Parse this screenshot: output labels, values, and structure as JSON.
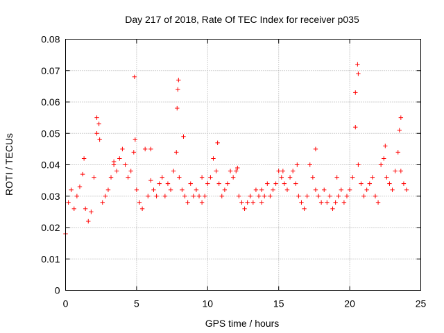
{
  "chart_data": {
    "type": "scatter",
    "title": "Day 217 of 2018, Rate Of TEC Index for receiver p035",
    "xlabel": "GPS time / hours",
    "ylabel": "ROTI / TECUs",
    "xlim": [
      0,
      25
    ],
    "ylim": [
      0,
      0.08
    ],
    "xticks": [
      0,
      5,
      10,
      15,
      20,
      25
    ],
    "xtick_labels": [
      "0",
      "5",
      "10",
      "15",
      "20",
      "25"
    ],
    "yticks": [
      0,
      0.01,
      0.02,
      0.03,
      0.04,
      0.05,
      0.06,
      0.07,
      0.08
    ],
    "ytick_labels": [
      "0",
      "0.01",
      "0.02",
      "0.03",
      "0.04",
      "0.05",
      "0.06",
      "0.07",
      "0.08"
    ],
    "grid": true,
    "marker": "+",
    "series": [
      {
        "name": "ROTI",
        "color": "#ff0000",
        "x": [
          0.0,
          0.2,
          0.4,
          0.6,
          0.8,
          1.0,
          1.2,
          1.4,
          1.6,
          1.8,
          2.0,
          2.2,
          2.4,
          2.6,
          2.8,
          3.0,
          3.2,
          3.4,
          3.6,
          3.8,
          4.0,
          4.2,
          4.4,
          4.6,
          4.8,
          5.0,
          5.2,
          5.4,
          5.6,
          5.8,
          6.0,
          6.2,
          6.4,
          6.6,
          6.8,
          7.0,
          7.2,
          7.4,
          7.6,
          7.8,
          8.0,
          8.2,
          8.4,
          8.6,
          8.8,
          9.0,
          9.2,
          9.4,
          9.6,
          9.8,
          10.0,
          10.2,
          10.4,
          10.6,
          10.8,
          11.0,
          11.2,
          11.4,
          11.6,
          11.8,
          12.0,
          12.2,
          12.4,
          12.6,
          12.8,
          13.0,
          13.2,
          13.4,
          13.6,
          13.8,
          14.0,
          14.2,
          14.4,
          14.6,
          14.8,
          15.0,
          15.2,
          15.4,
          15.6,
          15.8,
          16.0,
          16.2,
          16.4,
          16.6,
          16.8,
          17.0,
          17.2,
          17.4,
          17.6,
          17.8,
          18.0,
          18.2,
          18.4,
          18.6,
          18.8,
          19.0,
          19.2,
          19.4,
          19.6,
          19.8,
          20.0,
          20.2,
          20.4,
          20.6,
          20.8,
          21.0,
          21.2,
          21.4,
          21.6,
          21.8,
          22.0,
          22.2,
          22.4,
          22.6,
          22.8,
          23.0,
          23.2,
          23.4,
          23.6,
          23.8,
          24.0,
          2.2,
          2.35,
          4.85,
          4.9,
          7.85,
          7.9,
          7.95,
          8.3,
          10.7,
          12.1,
          15.3,
          16.3,
          17.6,
          20.4,
          20.55,
          20.6,
          22.5,
          23.5,
          23.6,
          1.3,
          3.4,
          6.0,
          9.6,
          13.8,
          19.1
        ],
        "y": [
          0.018,
          0.028,
          0.032,
          0.026,
          0.03,
          0.033,
          0.037,
          0.026,
          0.022,
          0.025,
          0.036,
          0.05,
          0.048,
          0.028,
          0.03,
          0.032,
          0.036,
          0.04,
          0.038,
          0.042,
          0.045,
          0.04,
          0.036,
          0.038,
          0.044,
          0.032,
          0.028,
          0.026,
          0.045,
          0.03,
          0.035,
          0.032,
          0.03,
          0.034,
          0.036,
          0.03,
          0.034,
          0.032,
          0.038,
          0.044,
          0.036,
          0.032,
          0.03,
          0.028,
          0.034,
          0.03,
          0.032,
          0.03,
          0.028,
          0.03,
          0.034,
          0.036,
          0.042,
          0.038,
          0.034,
          0.03,
          0.032,
          0.034,
          0.038,
          0.036,
          0.038,
          0.03,
          0.028,
          0.026,
          0.028,
          0.03,
          0.028,
          0.032,
          0.03,
          0.028,
          0.03,
          0.034,
          0.03,
          0.032,
          0.034,
          0.038,
          0.036,
          0.034,
          0.032,
          0.036,
          0.038,
          0.034,
          0.03,
          0.028,
          0.026,
          0.03,
          0.04,
          0.036,
          0.032,
          0.03,
          0.028,
          0.032,
          0.028,
          0.03,
          0.026,
          0.028,
          0.03,
          0.032,
          0.028,
          0.03,
          0.032,
          0.036,
          0.052,
          0.04,
          0.034,
          0.03,
          0.032,
          0.034,
          0.036,
          0.03,
          0.028,
          0.04,
          0.042,
          0.036,
          0.034,
          0.032,
          0.038,
          0.044,
          0.038,
          0.034,
          0.032,
          0.055,
          0.053,
          0.068,
          0.048,
          0.058,
          0.064,
          0.067,
          0.049,
          0.047,
          0.039,
          0.038,
          0.04,
          0.045,
          0.063,
          0.072,
          0.069,
          0.046,
          0.051,
          0.055,
          0.042,
          0.041,
          0.045,
          0.036,
          0.032,
          0.036
        ]
      }
    ]
  }
}
